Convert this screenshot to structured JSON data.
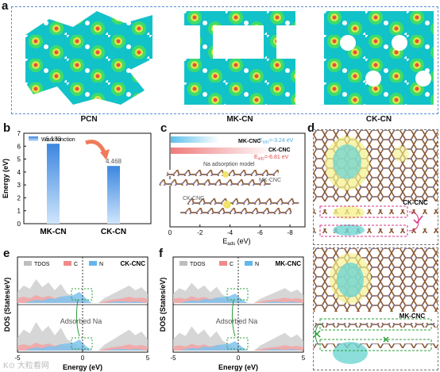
{
  "panel_labels": {
    "a": "a",
    "b": "b",
    "c": "c",
    "d": "d",
    "e": "e",
    "f": "f"
  },
  "panel_a": {
    "captions": [
      "PCN",
      "MK-CN",
      "CK-CN"
    ]
  },
  "panel_b": {
    "legend": "Work function",
    "ylabel": "Energy (eV)",
    "ticks": [
      "0",
      "1",
      "2",
      "3",
      "4",
      "5",
      "6",
      "7"
    ],
    "bar_labels": [
      "6.188",
      "4.468"
    ]
  },
  "panel_c": {
    "xlabel_main": "E",
    "xlabel_sub": "ads",
    "xlabel_unit": " (eV)",
    "ticks": [
      "0",
      "-2",
      "-4",
      "-6",
      "-8"
    ],
    "mk_label": "MK-CNC",
    "mk_energy": "E",
    "mk_energy_sub": "ads",
    "mk_energy_val": "=-3.24 eV",
    "ck_label": "CK-CNC",
    "ck_energy": "E",
    "ck_energy_sub": "ads",
    "ck_energy_val": "=-6.81 eV",
    "model_title": "Na adsorption model",
    "model_mk": "MK-CNC",
    "model_ck": "CK-CNC"
  },
  "panel_d": {
    "ck_label": "CK-CNC",
    "mk_label": "MK-CNC"
  },
  "panel_e": {
    "title": "CK-CNC",
    "legend": [
      "TDOS",
      "C",
      "N"
    ],
    "ylabel": "DOS (States/eV)",
    "xlabel": "Energy (eV)",
    "ticks": [
      "-5",
      "0",
      "5"
    ],
    "annotation": "Adsorbed Na"
  },
  "panel_f": {
    "title": "MK-CNC",
    "legend": [
      "TDOS",
      "C",
      "N"
    ],
    "ylabel": "DOS (States/eV)",
    "xlabel": "Energy (eV)",
    "ticks": [
      "-5",
      "0",
      "5"
    ],
    "annotation": "Adsorbed Na"
  },
  "watermark": "K⊙ 大粒看网",
  "chart_data": [
    {
      "type": "bar",
      "categories": [
        "MK-CN",
        "CK-CN"
      ],
      "values": [
        6.188,
        4.468
      ],
      "ylabel": "Energy (eV)",
      "ylim": [
        0,
        7
      ],
      "legend": "top-left"
    },
    {
      "type": "bar",
      "orientation": "horizontal",
      "categories": [
        "MK-CNC",
        "CK-CNC"
      ],
      "values": [
        -3.24,
        -6.81
      ],
      "xlabel": "Eads (eV)",
      "xlim": [
        0,
        -9
      ]
    },
    {
      "type": "area",
      "title": "CK-CNC",
      "xlabel": "Energy (eV)",
      "ylabel": "DOS (States/eV)",
      "xlim": [
        -5,
        5
      ],
      "series": [
        {
          "name": "TDOS"
        },
        {
          "name": "C"
        },
        {
          "name": "N"
        }
      ]
    },
    {
      "type": "area",
      "title": "MK-CNC",
      "xlabel": "Energy (eV)",
      "ylabel": "DOS (States/eV)",
      "xlim": [
        -5,
        5
      ],
      "series": [
        {
          "name": "TDOS"
        },
        {
          "name": "C"
        },
        {
          "name": "N"
        }
      ]
    }
  ]
}
